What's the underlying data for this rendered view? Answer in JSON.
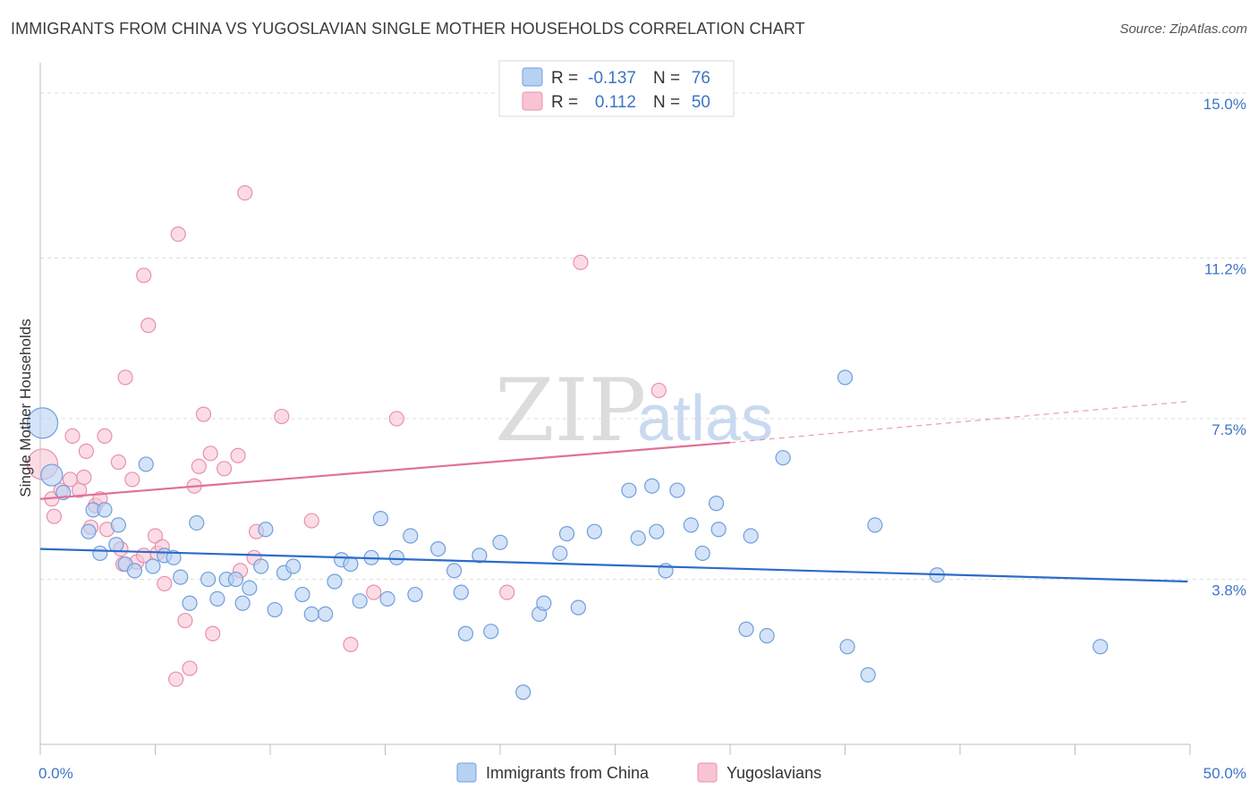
{
  "header": {
    "title": "IMMIGRANTS FROM CHINA VS YUGOSLAVIAN SINGLE MOTHER HOUSEHOLDS CORRELATION CHART",
    "source": "Source: ZipAtlas.com"
  },
  "watermark": {
    "zip": "ZIP",
    "atlas": "atlas"
  },
  "colors": {
    "blue_fill": "#b7d1f3",
    "blue_stroke": "#6f9fdc",
    "blue_line": "#2b6cc8",
    "pink_fill": "#f8c4d3",
    "pink_stroke": "#e891ab",
    "pink_line": "#e0709a",
    "grid": "#dcdcdc",
    "axis_text": "#3d74c6"
  },
  "legend": {
    "rows": [
      {
        "r_label": "R =",
        "r_value": "-0.137",
        "n_label": "N =",
        "n_value": "76"
      },
      {
        "r_label": "R =",
        "r_value": "0.112",
        "n_label": "N =",
        "n_value": "50"
      }
    ]
  },
  "bottom_legend": {
    "china": "Immigrants from China",
    "yugo": "Yugoslavians"
  },
  "chart_data": {
    "type": "scatter",
    "title": "IMMIGRANTS FROM CHINA VS YUGOSLAVIAN SINGLE MOTHER HOUSEHOLDS CORRELATION CHART",
    "xlabel": "",
    "ylabel": "Single Mother Households",
    "xlim": [
      0,
      50
    ],
    "ylim": [
      0,
      15.7
    ],
    "x_tick_labels": [
      "0.0%",
      "50.0%"
    ],
    "y_tick_labels": [
      "3.8%",
      "7.5%",
      "11.2%",
      "15.0%"
    ],
    "y_ticks": [
      3.8,
      7.5,
      11.2,
      15.0
    ],
    "series": [
      {
        "name": "Immigrants from China",
        "R": -0.137,
        "N": 76,
        "trend": {
          "x": [
            0,
            49.9
          ],
          "y": [
            4.5,
            3.75
          ]
        },
        "points": [
          {
            "x": 0.1,
            "y": 7.4,
            "s": "xl"
          },
          {
            "x": 0.5,
            "y": 6.2,
            "s": "l"
          },
          {
            "x": 1.0,
            "y": 5.8,
            "s": "m"
          },
          {
            "x": 2.3,
            "y": 5.4,
            "s": "m"
          },
          {
            "x": 2.8,
            "y": 5.4,
            "s": "m"
          },
          {
            "x": 2.1,
            "y": 4.9,
            "s": "m"
          },
          {
            "x": 3.3,
            "y": 4.6,
            "s": "m"
          },
          {
            "x": 2.6,
            "y": 4.4,
            "s": "m"
          },
          {
            "x": 3.4,
            "y": 5.05,
            "s": "m"
          },
          {
            "x": 3.7,
            "y": 4.15,
            "s": "m"
          },
          {
            "x": 4.1,
            "y": 4.0,
            "s": "m"
          },
          {
            "x": 4.6,
            "y": 6.45,
            "s": "m"
          },
          {
            "x": 4.9,
            "y": 4.1,
            "s": "m"
          },
          {
            "x": 5.4,
            "y": 4.35,
            "s": "m"
          },
          {
            "x": 5.8,
            "y": 4.3,
            "s": "m"
          },
          {
            "x": 6.1,
            "y": 3.85,
            "s": "m"
          },
          {
            "x": 6.5,
            "y": 3.25,
            "s": "m"
          },
          {
            "x": 6.8,
            "y": 5.1,
            "s": "m"
          },
          {
            "x": 7.3,
            "y": 3.8,
            "s": "m"
          },
          {
            "x": 7.7,
            "y": 3.35,
            "s": "m"
          },
          {
            "x": 8.1,
            "y": 3.8,
            "s": "m"
          },
          {
            "x": 8.5,
            "y": 3.8,
            "s": "m"
          },
          {
            "x": 8.8,
            "y": 3.25,
            "s": "m"
          },
          {
            "x": 9.1,
            "y": 3.6,
            "s": "m"
          },
          {
            "x": 9.6,
            "y": 4.1,
            "s": "m"
          },
          {
            "x": 9.8,
            "y": 4.95,
            "s": "m"
          },
          {
            "x": 10.2,
            "y": 3.1,
            "s": "m"
          },
          {
            "x": 10.6,
            "y": 3.95,
            "s": "m"
          },
          {
            "x": 11.0,
            "y": 4.1,
            "s": "m"
          },
          {
            "x": 11.4,
            "y": 3.45,
            "s": "m"
          },
          {
            "x": 11.8,
            "y": 3.0,
            "s": "m"
          },
          {
            "x": 12.4,
            "y": 3.0,
            "s": "m"
          },
          {
            "x": 12.8,
            "y": 3.75,
            "s": "m"
          },
          {
            "x": 13.1,
            "y": 4.25,
            "s": "m"
          },
          {
            "x": 13.5,
            "y": 4.15,
            "s": "m"
          },
          {
            "x": 13.9,
            "y": 3.3,
            "s": "m"
          },
          {
            "x": 14.4,
            "y": 4.3,
            "s": "m"
          },
          {
            "x": 14.8,
            "y": 5.2,
            "s": "m"
          },
          {
            "x": 15.1,
            "y": 3.35,
            "s": "m"
          },
          {
            "x": 15.5,
            "y": 4.3,
            "s": "m"
          },
          {
            "x": 16.1,
            "y": 4.8,
            "s": "m"
          },
          {
            "x": 16.3,
            "y": 3.45,
            "s": "m"
          },
          {
            "x": 17.3,
            "y": 4.5,
            "s": "m"
          },
          {
            "x": 18.0,
            "y": 4.0,
            "s": "m"
          },
          {
            "x": 18.3,
            "y": 3.5,
            "s": "m"
          },
          {
            "x": 18.5,
            "y": 2.55,
            "s": "m"
          },
          {
            "x": 19.1,
            "y": 4.35,
            "s": "m"
          },
          {
            "x": 19.6,
            "y": 2.6,
            "s": "m"
          },
          {
            "x": 20.0,
            "y": 4.65,
            "s": "m"
          },
          {
            "x": 21.0,
            "y": 1.2,
            "s": "m"
          },
          {
            "x": 21.7,
            "y": 3.0,
            "s": "m"
          },
          {
            "x": 21.9,
            "y": 3.25,
            "s": "m"
          },
          {
            "x": 22.6,
            "y": 4.4,
            "s": "m"
          },
          {
            "x": 22.9,
            "y": 4.85,
            "s": "m"
          },
          {
            "x": 23.4,
            "y": 3.15,
            "s": "m"
          },
          {
            "x": 24.1,
            "y": 4.9,
            "s": "m"
          },
          {
            "x": 25.6,
            "y": 5.85,
            "s": "m"
          },
          {
            "x": 26.0,
            "y": 4.75,
            "s": "m"
          },
          {
            "x": 26.6,
            "y": 5.95,
            "s": "m"
          },
          {
            "x": 26.8,
            "y": 4.9,
            "s": "m"
          },
          {
            "x": 27.2,
            "y": 4.0,
            "s": "m"
          },
          {
            "x": 27.7,
            "y": 5.85,
            "s": "m"
          },
          {
            "x": 28.3,
            "y": 5.05,
            "s": "m"
          },
          {
            "x": 28.8,
            "y": 4.4,
            "s": "m"
          },
          {
            "x": 29.4,
            "y": 5.55,
            "s": "m"
          },
          {
            "x": 29.5,
            "y": 4.95,
            "s": "m"
          },
          {
            "x": 30.7,
            "y": 2.65,
            "s": "m"
          },
          {
            "x": 30.9,
            "y": 4.8,
            "s": "m"
          },
          {
            "x": 31.6,
            "y": 2.5,
            "s": "m"
          },
          {
            "x": 32.3,
            "y": 6.6,
            "s": "m"
          },
          {
            "x": 35.0,
            "y": 8.45,
            "s": "m"
          },
          {
            "x": 35.1,
            "y": 2.25,
            "s": "m"
          },
          {
            "x": 36.0,
            "y": 1.6,
            "s": "m"
          },
          {
            "x": 36.3,
            "y": 5.05,
            "s": "m"
          },
          {
            "x": 39.0,
            "y": 3.9,
            "s": "m"
          },
          {
            "x": 46.1,
            "y": 2.25,
            "s": "m"
          }
        ]
      },
      {
        "name": "Yugoslavians",
        "R": 0.112,
        "N": 50,
        "trend": {
          "x": [
            0,
            30
          ],
          "y": [
            5.65,
            6.95
          ]
        },
        "trend_dashed": {
          "x": [
            30,
            50
          ],
          "y": [
            6.95,
            7.9
          ]
        },
        "points": [
          {
            "x": 0.1,
            "y": 6.45,
            "s": "xl"
          },
          {
            "x": 0.5,
            "y": 5.65,
            "s": "m"
          },
          {
            "x": 0.6,
            "y": 5.25,
            "s": "m"
          },
          {
            "x": 0.9,
            "y": 5.85,
            "s": "m"
          },
          {
            "x": 1.3,
            "y": 6.1,
            "s": "m"
          },
          {
            "x": 1.4,
            "y": 7.1,
            "s": "m"
          },
          {
            "x": 1.7,
            "y": 5.85,
            "s": "m"
          },
          {
            "x": 1.9,
            "y": 6.15,
            "s": "m"
          },
          {
            "x": 2.0,
            "y": 6.75,
            "s": "m"
          },
          {
            "x": 2.2,
            "y": 5.0,
            "s": "m"
          },
          {
            "x": 2.4,
            "y": 5.5,
            "s": "m"
          },
          {
            "x": 2.6,
            "y": 5.65,
            "s": "m"
          },
          {
            "x": 2.8,
            "y": 7.1,
            "s": "m"
          },
          {
            "x": 2.9,
            "y": 4.95,
            "s": "m"
          },
          {
            "x": 3.4,
            "y": 6.5,
            "s": "m"
          },
          {
            "x": 3.5,
            "y": 4.5,
            "s": "m"
          },
          {
            "x": 3.6,
            "y": 4.15,
            "s": "m"
          },
          {
            "x": 3.7,
            "y": 8.45,
            "s": "m"
          },
          {
            "x": 4.0,
            "y": 6.1,
            "s": "m"
          },
          {
            "x": 4.2,
            "y": 4.2,
            "s": "m"
          },
          {
            "x": 4.5,
            "y": 4.35,
            "s": "m"
          },
          {
            "x": 4.5,
            "y": 10.8,
            "s": "m"
          },
          {
            "x": 4.7,
            "y": 9.65,
            "s": "m"
          },
          {
            "x": 5.0,
            "y": 4.8,
            "s": "m"
          },
          {
            "x": 5.1,
            "y": 4.4,
            "s": "m"
          },
          {
            "x": 5.3,
            "y": 4.55,
            "s": "m"
          },
          {
            "x": 5.4,
            "y": 3.7,
            "s": "m"
          },
          {
            "x": 5.9,
            "y": 1.5,
            "s": "m"
          },
          {
            "x": 6.0,
            "y": 11.75,
            "s": "m"
          },
          {
            "x": 6.3,
            "y": 2.85,
            "s": "m"
          },
          {
            "x": 6.5,
            "y": 1.75,
            "s": "m"
          },
          {
            "x": 6.7,
            "y": 5.95,
            "s": "m"
          },
          {
            "x": 6.9,
            "y": 6.4,
            "s": "m"
          },
          {
            "x": 7.1,
            "y": 7.6,
            "s": "m"
          },
          {
            "x": 7.4,
            "y": 6.7,
            "s": "m"
          },
          {
            "x": 7.5,
            "y": 2.55,
            "s": "m"
          },
          {
            "x": 8.0,
            "y": 6.35,
            "s": "m"
          },
          {
            "x": 8.6,
            "y": 6.65,
            "s": "m"
          },
          {
            "x": 8.7,
            "y": 4.0,
            "s": "m"
          },
          {
            "x": 8.9,
            "y": 12.7,
            "s": "m"
          },
          {
            "x": 9.3,
            "y": 4.3,
            "s": "m"
          },
          {
            "x": 9.4,
            "y": 4.9,
            "s": "m"
          },
          {
            "x": 10.5,
            "y": 7.55,
            "s": "m"
          },
          {
            "x": 11.8,
            "y": 5.15,
            "s": "m"
          },
          {
            "x": 13.5,
            "y": 2.3,
            "s": "m"
          },
          {
            "x": 14.5,
            "y": 3.5,
            "s": "m"
          },
          {
            "x": 15.5,
            "y": 7.5,
            "s": "m"
          },
          {
            "x": 20.3,
            "y": 3.5,
            "s": "m"
          },
          {
            "x": 23.5,
            "y": 11.1,
            "s": "m"
          },
          {
            "x": 26.9,
            "y": 8.15,
            "s": "m"
          }
        ]
      }
    ]
  }
}
